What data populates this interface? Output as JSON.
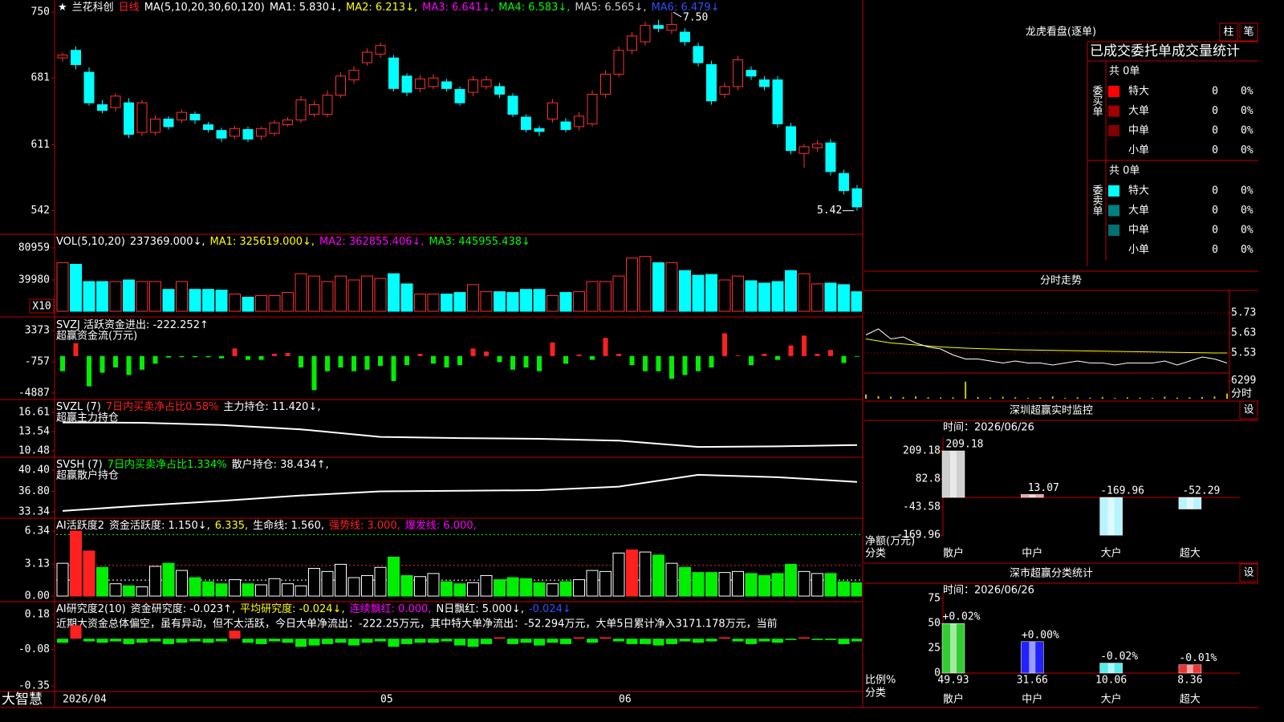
{
  "main": {
    "title_items": [
      {
        "text": "★",
        "color": "#ffffff"
      },
      {
        "text": "兰花科创",
        "color": "#ffffff"
      },
      {
        "text": "日线",
        "color": "#ff2020"
      },
      {
        "text": "MA(5,10,20,30,60,120)",
        "color": "#ffffff"
      },
      {
        "text": "MA1: 5.830↓,",
        "color": "#ffffff"
      },
      {
        "text": "MA2: 6.213↓,",
        "color": "#ffff00"
      },
      {
        "text": "MA3: 6.641↓,",
        "color": "#ff00ff"
      },
      {
        "text": "MA4: 6.583↓,",
        "color": "#00ff00"
      },
      {
        "text": "MA5: 6.565↓,",
        "color": "#cccccc"
      },
      {
        "text": "MA6: 6.479↓",
        "color": "#3050ff"
      }
    ],
    "ylim": [
      5.19,
      7.61
    ],
    "yticks": [
      {
        "value": 7.5,
        "label": "750"
      },
      {
        "value": 6.81,
        "label": "681"
      },
      {
        "value": 6.11,
        "label": "611"
      },
      {
        "value": 5.42,
        "label": "542"
      }
    ],
    "categories": [
      "2026/04",
      null,
      null,
      null,
      null,
      null,
      null,
      null,
      null,
      null,
      null,
      null,
      null,
      null,
      null,
      null,
      null,
      null,
      null,
      null,
      null,
      null,
      null,
      null,
      "05",
      null,
      null,
      null,
      null,
      null,
      null,
      null,
      null,
      null,
      null,
      null,
      null,
      null,
      null,
      null,
      null,
      null,
      "06",
      null,
      null,
      null,
      null,
      null,
      null,
      null,
      null,
      null,
      null,
      null,
      null,
      null,
      null,
      null,
      null,
      null,
      null
    ],
    "open": [
      7.02,
      7.1,
      6.87,
      6.53,
      6.5,
      6.55,
      6.24,
      6.24,
      6.38,
      6.37,
      6.43,
      6.32,
      6.26,
      6.2,
      6.27,
      6.2,
      6.23,
      6.32,
      6.37,
      6.43,
      6.43,
      6.63,
      6.79,
      6.97,
      7.06,
      7.02,
      6.83,
      6.7,
      6.72,
      6.77,
      6.69,
      6.66,
      6.72,
      6.72,
      6.62,
      6.4,
      6.28,
      6.38,
      6.35,
      6.3,
      6.33,
      6.64,
      6.85,
      7.1,
      7.19,
      7.36,
      7.31,
      7.29,
      7.14,
      6.95,
      6.64,
      6.72,
      6.89,
      6.79,
      6.79,
      6.3,
      6.02,
      6.08,
      6.13,
      5.81,
      5.65
    ],
    "close": [
      7.05,
      6.95,
      6.55,
      6.47,
      6.62,
      6.22,
      6.55,
      6.38,
      6.3,
      6.45,
      6.37,
      6.27,
      6.18,
      6.28,
      6.17,
      6.28,
      6.34,
      6.37,
      6.58,
      6.53,
      6.63,
      6.83,
      6.89,
      7.08,
      7.15,
      6.7,
      6.66,
      6.8,
      6.81,
      6.7,
      6.55,
      6.79,
      6.79,
      6.64,
      6.43,
      6.27,
      6.25,
      6.55,
      6.27,
      6.41,
      6.64,
      6.85,
      7.1,
      7.25,
      7.36,
      7.33,
      7.37,
      7.19,
      6.97,
      6.57,
      6.72,
      7.0,
      6.83,
      6.72,
      6.33,
      6.05,
      6.09,
      6.12,
      5.83,
      5.63,
      5.46
    ],
    "high": [
      7.08,
      7.14,
      6.92,
      6.58,
      6.65,
      6.6,
      6.58,
      6.42,
      6.41,
      6.48,
      6.46,
      6.35,
      6.29,
      6.31,
      6.3,
      6.3,
      6.37,
      6.4,
      6.62,
      6.57,
      6.68,
      6.87,
      6.93,
      7.12,
      7.18,
      7.05,
      6.86,
      6.84,
      6.85,
      6.8,
      6.72,
      6.83,
      6.83,
      6.76,
      6.65,
      6.43,
      6.31,
      6.59,
      6.39,
      6.45,
      6.68,
      6.89,
      7.14,
      7.29,
      7.4,
      7.42,
      7.5,
      7.33,
      7.18,
      6.99,
      6.76,
      7.04,
      6.93,
      6.83,
      6.83,
      6.34,
      6.12,
      6.16,
      6.17,
      5.85,
      5.69
    ],
    "low": [
      6.98,
      6.9,
      6.52,
      6.44,
      6.46,
      6.18,
      6.2,
      6.21,
      6.27,
      6.34,
      6.33,
      6.24,
      6.14,
      6.17,
      6.14,
      6.16,
      6.2,
      6.3,
      6.34,
      6.4,
      6.4,
      6.6,
      6.75,
      6.94,
      7.02,
      6.67,
      6.62,
      6.66,
      6.69,
      6.67,
      6.52,
      6.62,
      6.69,
      6.6,
      6.4,
      6.24,
      6.2,
      6.34,
      6.24,
      6.26,
      6.3,
      6.6,
      6.82,
      7.06,
      7.15,
      7.29,
      7.27,
      7.15,
      6.93,
      6.53,
      6.6,
      6.68,
      6.79,
      6.68,
      6.29,
      6.01,
      5.87,
      6.04,
      5.79,
      5.59,
      5.42
    ],
    "high_note": "7.50",
    "low_note": "5.42"
  },
  "volume": {
    "items": [
      {
        "text": "VOL(5,10,20)",
        "color": "#ffffff"
      },
      {
        "text": "237369.000↓,",
        "color": "#ffffff"
      },
      {
        "text": "MA1: 325619.000↓,",
        "color": "#ffff00"
      },
      {
        "text": "MA2: 362855.406↓,",
        "color": "#ff00ff"
      },
      {
        "text": "MA3: 445955.438↓",
        "color": "#00ff00"
      }
    ],
    "unit": "X10",
    "ylim": [
      0,
      97400
    ],
    "yticks": [
      80959,
      39980
    ],
    "values": [
      62000,
      60000,
      38000,
      38000,
      38000,
      40000,
      38000,
      38000,
      28000,
      38000,
      28000,
      28000,
      27000,
      22000,
      18000,
      20000,
      20000,
      24000,
      48000,
      45000,
      38000,
      45000,
      40000,
      45000,
      42000,
      48000,
      35000,
      22000,
      22000,
      22000,
      24000,
      34000,
      25000,
      25000,
      24000,
      28000,
      28000,
      20000,
      24000,
      25000,
      38000,
      38000,
      45000,
      68000,
      70000,
      62000,
      62000,
      52000,
      46000,
      47000,
      40000,
      45000,
      39000,
      36000,
      38000,
      52000,
      48000,
      35000,
      36000,
      34000,
      25000
    ]
  },
  "svzj": {
    "items": [
      {
        "text": "SVZJ  活跃资金进出: -222.252↑",
        "color": "#ffffff"
      }
    ],
    "subtitle": "超赢资金流(万元)",
    "ylim": [
      -5522,
      4855
    ],
    "yticks": [
      3373,
      -757,
      -4887
    ],
    "values": [
      -2000,
      1700,
      -4000,
      -2200,
      -1500,
      -2500,
      -1800,
      -1000,
      -200,
      -150,
      -150,
      -150,
      -300,
      1000,
      -500,
      -500,
      300,
      400,
      -1500,
      -4500,
      -2000,
      -1500,
      -2000,
      -1800,
      -1300,
      -3300,
      -1200,
      300,
      -1000,
      -1500,
      -1200,
      1000,
      600,
      -800,
      -1800,
      -1500,
      -2000,
      1800,
      -1000,
      200,
      -500,
      2400,
      300,
      -1200,
      -2000,
      -2000,
      -3000,
      -2500,
      -2000,
      -1500,
      3000,
      100,
      -1200,
      300,
      -500,
      1400,
      2700,
      300,
      800,
      -900,
      -100
    ]
  },
  "svzl": {
    "items": [
      {
        "text": "SVZL (7)",
        "color": "#ffffff"
      },
      {
        "text": "7日内买卖净占比0.58%",
        "color": "#ff2020"
      },
      {
        "text": "主力持仓: 11.420↓,",
        "color": "#ffffff"
      }
    ],
    "subtitle": "超赢主力持仓",
    "ylim": [
      9.71,
      18.27
    ],
    "yticks": [
      16.61,
      13.54,
      10.48
    ],
    "x": [
      0,
      6,
      12,
      18,
      24,
      30,
      36,
      42,
      48,
      54,
      60
    ],
    "values": [
      15.0,
      14.95,
      14.6,
      13.9,
      12.7,
      12.5,
      12.4,
      12.1,
      11.1,
      11.2,
      11.4
    ]
  },
  "svsh": {
    "items": [
      {
        "text": "SVSH (7)",
        "color": "#ffffff"
      },
      {
        "text": "7日内买卖净占比1.334%",
        "color": "#00ff00"
      },
      {
        "text": "散户持仓: 38.434↑,",
        "color": "#ffffff"
      }
    ],
    "subtitle": "超赢散户持仓",
    "ylim": [
      32.53,
      42.16
    ],
    "yticks": [
      {
        "value": 40.4,
        "label": "40.40"
      },
      {
        "value": 36.8,
        "label": "36.80"
      },
      33.34
    ],
    "x": [
      0,
      6,
      12,
      18,
      24,
      30,
      36,
      42,
      48,
      54,
      60
    ],
    "values": [
      33.5,
      34.4,
      35.2,
      36.1,
      36.8,
      36.9,
      37.0,
      37.6,
      39.6,
      39.2,
      38.4
    ]
  },
  "ai_active": {
    "items": [
      {
        "text": "AI活跃度2",
        "color": "#ffffff"
      },
      {
        "text": "资金活跃度: 1.150↓,",
        "color": "#ffffff"
      },
      {
        "text": "6.335,",
        "color": "#ffff00"
      },
      {
        "text": "生命线: 1.560,",
        "color": "#ffffff"
      },
      {
        "text": "强势线: 3.000,",
        "color": "#ff2020"
      },
      {
        "text": "爆发线: 6.000,",
        "color": "#ff00ff"
      }
    ],
    "ylim": [
      -0.39,
      7.36
    ],
    "yticks": [
      6.34,
      3.13,
      {
        "value": 0,
        "label": "0.00"
      }
    ],
    "levels": [
      {
        "value": 1.56,
        "color": "#ffffff"
      },
      {
        "value": 3.0,
        "color": "#ff2020"
      },
      {
        "value": 6.0,
        "color": "#00ff00"
      }
    ],
    "values": [
      3.2,
      6.34,
      4.4,
      2.8,
      1.2,
      1.0,
      0.9,
      2.9,
      3.2,
      2.5,
      1.8,
      1.4,
      1.2,
      1.6,
      1.2,
      1.1,
      1.7,
      1.2,
      1.0,
      2.7,
      2.4,
      3.1,
      1.8,
      2.0,
      2.8,
      3.8,
      2.0,
      1.9,
      2.2,
      1.4,
      1.2,
      1.3,
      2.0,
      1.6,
      1.8,
      1.7,
      1.3,
      1.2,
      1.4,
      1.6,
      2.5,
      2.4,
      4.2,
      4.5,
      4.3,
      4.0,
      3.2,
      2.8,
      2.3,
      2.3,
      2.3,
      2.4,
      2.2,
      2.0,
      2.2,
      3.1,
      2.4,
      2.2,
      2.2,
      1.4,
      1.3
    ]
  },
  "ai_research": {
    "items": [
      {
        "text": "AI研究度2(10)",
        "color": "#ffffff"
      },
      {
        "text": "资金研究度: -0.023↑,",
        "color": "#ffffff"
      },
      {
        "text": "平均研究度: -0.024↓,",
        "color": "#ffff00"
      },
      {
        "text": "连续飘红: 0.000,",
        "color": "#ff00ff"
      },
      {
        "text": "N日飘红: 5.000↓,",
        "color": "#ffffff"
      },
      {
        "text": "-0.024↓",
        "color": "#3050ff"
      }
    ],
    "commentary": "近期大资金总体偏空，虽有异动，但不太活跃，今日大单净流出：-222.25万元，其中特大单净流出：-52.294万元，大单5日累计净入3171.178万元，当前",
    "ylim": [
      -0.38,
      0.257
    ],
    "yticks": [
      0.18,
      -0.08,
      -0.35
    ],
    "values": [
      -0.03,
      0.1,
      -0.02,
      -0.03,
      -0.02,
      -0.04,
      -0.03,
      -0.02,
      -0.04,
      -0.03,
      -0.02,
      -0.03,
      -0.02,
      0.06,
      -0.03,
      -0.04,
      -0.02,
      -0.03,
      -0.06,
      -0.05,
      -0.04,
      -0.03,
      -0.05,
      -0.03,
      -0.02,
      -0.06,
      -0.04,
      -0.03,
      -0.03,
      -0.02,
      -0.05,
      -0.06,
      -0.04,
      0.01,
      -0.04,
      -0.03,
      -0.05,
      -0.03,
      -0.04,
      0.01,
      -0.03,
      0.01,
      -0.02,
      -0.04,
      -0.04,
      -0.05,
      -0.04,
      -0.02,
      -0.03,
      -0.02,
      0.01,
      -0.02,
      -0.04,
      -0.02,
      -0.03,
      -0.01,
      0.01,
      -0.01,
      -0.01,
      -0.04,
      -0.02
    ]
  },
  "footer": {
    "brand": "大智慧"
  },
  "side": {
    "title": "龙虎看盘(逐单)",
    "buttons": [
      "柱",
      "笔"
    ],
    "stat_title": "已成交委托单成交量统计",
    "buy": {
      "label": "委买单",
      "total": "共 0单",
      "rows": [
        {
          "name": "特大",
          "count": 0,
          "pct": "0%",
          "color": "#ff0000"
        },
        {
          "name": "大单",
          "count": 0,
          "pct": "0%",
          "color": "#a00000"
        },
        {
          "name": "中单",
          "count": 0,
          "pct": "0%",
          "color": "#800000"
        },
        {
          "name": "小单",
          "count": 0,
          "pct": "0%"
        }
      ]
    },
    "sell": {
      "label": "委卖单",
      "total": "共 0单",
      "rows": [
        {
          "name": "特大",
          "count": 0,
          "pct": "0%",
          "color": "#00ffff"
        },
        {
          "name": "大单",
          "count": 0,
          "pct": "0%",
          "color": "#008080"
        },
        {
          "name": "中单",
          "count": 0,
          "pct": "0%",
          "color": "#007070"
        },
        {
          "name": "小单",
          "count": 0,
          "pct": "0%"
        }
      ]
    },
    "intraday": {
      "title": "分时走势",
      "ylim": [
        5.43,
        5.83
      ],
      "yticks": [
        5.73,
        5.63,
        5.53
      ],
      "values": [
        5.62,
        5.65,
        5.6,
        5.61,
        5.58,
        5.56,
        5.55,
        5.52,
        5.5,
        5.5,
        5.49,
        5.48,
        5.49,
        5.48,
        5.48,
        5.47,
        5.48,
        5.49,
        5.48,
        5.48,
        5.47,
        5.48,
        5.48,
        5.48,
        5.49,
        5.47,
        5.49,
        5.51,
        5.5,
        5.48
      ],
      "avg": [
        5.6,
        5.59,
        5.58,
        5.575,
        5.57,
        5.565,
        5.56,
        5.557,
        5.554,
        5.552,
        5.55,
        5.548,
        5.546,
        5.545,
        5.544,
        5.543,
        5.542,
        5.541,
        5.54,
        5.539,
        5.538,
        5.537,
        5.536,
        5.535,
        5.534,
        5.533,
        5.532,
        5.531,
        5.53,
        5.53
      ],
      "vol_ylim": [
        0,
        8750
      ],
      "vol_ticks": [
        6299
      ],
      "vol_label": "分时",
      "volumes": [
        1500,
        900,
        700,
        600,
        800,
        500,
        400,
        500,
        6000,
        600,
        400,
        700,
        500,
        300,
        400,
        800,
        300,
        500,
        400,
        600,
        300,
        500,
        400,
        300,
        700,
        400,
        500,
        600,
        800,
        1800
      ]
    },
    "sz_monitor": {
      "title": "深圳超赢实时监控",
      "button": "设",
      "time": "时间：2026/06/26",
      "categories": [
        "散户",
        "中户",
        "大户",
        "超大"
      ],
      "values": [
        209.18,
        13.07,
        -169.96,
        -52.29
      ],
      "colors": [
        "#cfcfcf",
        "#f0a0a0",
        "#b8f4ff",
        "#b8f4ff"
      ],
      "ylim": [
        -173,
        270.6
      ],
      "yticks": [
        209.18,
        82.8,
        -43.58,
        -169.96
      ],
      "ylabel": "净额(万元)",
      "xlabel": "分类"
    },
    "sz_stats": {
      "title": "深市超赢分类统计",
      "button": "设",
      "time": "时间：2026/06/26",
      "categories": [
        "散户",
        "中户",
        "大户",
        "超大"
      ],
      "values": [
        49.93,
        31.66,
        10.06,
        8.36
      ],
      "changes": [
        "+0.02%",
        "+0.00%",
        "-0.02%",
        "-0.01%"
      ],
      "colors": [
        "#33cc33",
        "#2222ff",
        "#55eeee",
        "#ee3333"
      ],
      "ylim": [
        0,
        80
      ],
      "yticks": [
        75,
        50,
        25,
        0
      ],
      "ylabel": "比例%",
      "xlabel": "分类"
    }
  }
}
